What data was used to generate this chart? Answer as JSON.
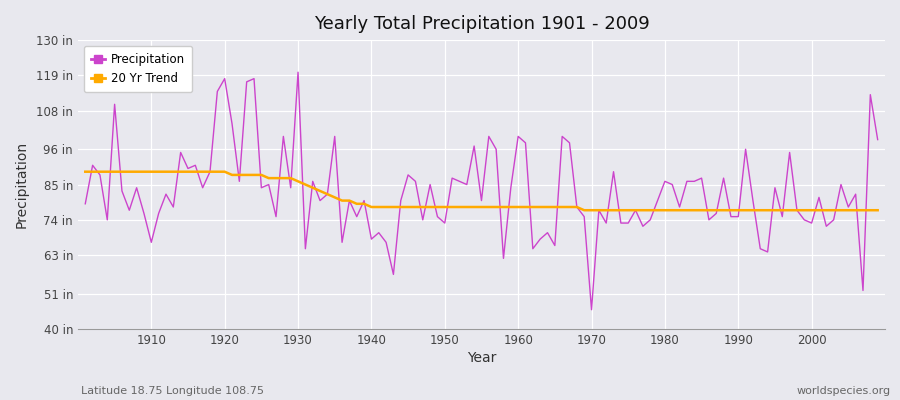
{
  "title": "Yearly Total Precipitation 1901 - 2009",
  "ylabel": "Precipitation",
  "xlabel": "Year",
  "footnote_left": "Latitude 18.75 Longitude 108.75",
  "footnote_right": "worldspecies.org",
  "legend_labels": [
    "Precipitation",
    "20 Yr Trend"
  ],
  "precip_color": "#cc44cc",
  "trend_color": "#ffaa00",
  "bg_color": "#e8e8ee",
  "plot_bg_color": "#e8e8ee",
  "ylim": [
    40,
    130
  ],
  "yticks": [
    40,
    51,
    63,
    74,
    85,
    96,
    108,
    119,
    130
  ],
  "ytick_labels": [
    "40 in",
    "51 in",
    "63 in",
    "74 in",
    "85 in",
    "96 in",
    "108 in",
    "119 in",
    "130 in"
  ],
  "years": [
    1901,
    1902,
    1903,
    1904,
    1905,
    1906,
    1907,
    1908,
    1909,
    1910,
    1911,
    1912,
    1913,
    1914,
    1915,
    1916,
    1917,
    1918,
    1919,
    1920,
    1921,
    1922,
    1923,
    1924,
    1925,
    1926,
    1927,
    1928,
    1929,
    1930,
    1931,
    1932,
    1933,
    1934,
    1935,
    1936,
    1937,
    1938,
    1939,
    1940,
    1941,
    1942,
    1943,
    1944,
    1945,
    1946,
    1947,
    1948,
    1949,
    1950,
    1951,
    1952,
    1953,
    1954,
    1955,
    1956,
    1957,
    1958,
    1959,
    1960,
    1961,
    1962,
    1963,
    1964,
    1965,
    1966,
    1967,
    1968,
    1969,
    1970,
    1971,
    1972,
    1973,
    1974,
    1975,
    1976,
    1977,
    1978,
    1979,
    1980,
    1981,
    1982,
    1983,
    1984,
    1985,
    1986,
    1987,
    1988,
    1989,
    1990,
    1991,
    1992,
    1993,
    1994,
    1995,
    1996,
    1997,
    1998,
    1999,
    2000,
    2001,
    2002,
    2003,
    2004,
    2005,
    2006,
    2007,
    2008,
    2009
  ],
  "precip": [
    79,
    91,
    88,
    74,
    110,
    83,
    77,
    84,
    76,
    67,
    76,
    82,
    78,
    95,
    90,
    91,
    84,
    89,
    114,
    118,
    104,
    86,
    117,
    118,
    84,
    85,
    75,
    100,
    84,
    120,
    65,
    86,
    80,
    82,
    100,
    67,
    80,
    75,
    80,
    68,
    70,
    67,
    57,
    80,
    88,
    86,
    74,
    85,
    75,
    73,
    87,
    86,
    85,
    97,
    80,
    100,
    96,
    62,
    84,
    100,
    98,
    65,
    68,
    70,
    66,
    100,
    98,
    78,
    75,
    46,
    77,
    73,
    89,
    73,
    73,
    77,
    72,
    74,
    80,
    86,
    85,
    78,
    86,
    86,
    87,
    74,
    76,
    87,
    75,
    75,
    96,
    80,
    65,
    64,
    84,
    75,
    95,
    77,
    74,
    73,
    81,
    72,
    74,
    85,
    78,
    82,
    52,
    113,
    99
  ],
  "trend": [
    89,
    89,
    89,
    89,
    89,
    89,
    89,
    89,
    89,
    89,
    89,
    89,
    89,
    89,
    89,
    89,
    89,
    89,
    89,
    89,
    88,
    88,
    88,
    88,
    88,
    87,
    87,
    87,
    87,
    86,
    85,
    84,
    83,
    82,
    81,
    80,
    80,
    79,
    79,
    78,
    78,
    78,
    78,
    78,
    78,
    78,
    78,
    78,
    78,
    78,
    78,
    78,
    78,
    78,
    78,
    78,
    78,
    78,
    78,
    78,
    78,
    78,
    78,
    78,
    78,
    78,
    78,
    78,
    77,
    77,
    77,
    77,
    77,
    77,
    77,
    77,
    77,
    77,
    77,
    77,
    77,
    77,
    77,
    77,
    77,
    77,
    77,
    77,
    77,
    77,
    77,
    77,
    77,
    77,
    77,
    77,
    77,
    77,
    77,
    77,
    77,
    77,
    77,
    77,
    77,
    77,
    77,
    77,
    77
  ]
}
